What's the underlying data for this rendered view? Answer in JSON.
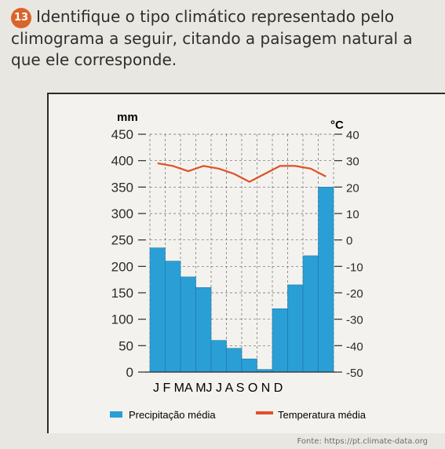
{
  "question": {
    "number": "13",
    "text": "Identifique o tipo climático representado pelo climograma a seguir, citando a paisagem natural a que ele corresponde."
  },
  "chart_data": {
    "type": "bar",
    "title": "",
    "categories": [
      "J",
      "F",
      "M",
      "A",
      "M",
      "J",
      "J",
      "A",
      "S",
      "O",
      "N",
      "D"
    ],
    "series": [
      {
        "name": "Precipitação média",
        "kind": "bar",
        "axis": "left",
        "values": [
          235,
          210,
          180,
          160,
          60,
          45,
          25,
          5,
          120,
          165,
          220,
          350
        ]
      },
      {
        "name": "Temperatura média",
        "kind": "line",
        "axis": "right",
        "values": [
          29,
          28,
          26,
          28,
          27,
          25,
          22,
          25,
          28,
          28,
          27,
          24
        ]
      }
    ],
    "y_left": {
      "label": "mm",
      "ticks": [
        "450",
        "400",
        "350",
        "300",
        "250",
        "200",
        "150",
        "100",
        "50",
        "0"
      ],
      "ylim": [
        0,
        450
      ]
    },
    "y_right": {
      "label": "°C",
      "ticks": [
        "40",
        "30",
        "20",
        "10",
        "0",
        "-10",
        "-20",
        "-30",
        "-40",
        "-50"
      ],
      "ylim": [
        -50,
        40
      ]
    },
    "x_label_text": "J F MA MJ J A S O N D",
    "legend_position": "bottom",
    "grid": true,
    "colors": {
      "bars": "#2a9fd6",
      "line": "#e0502a",
      "grid": "#6a6a6a",
      "axis": "#2b2b2b"
    },
    "source": "Fonte: https://pt.climate-data.org"
  }
}
